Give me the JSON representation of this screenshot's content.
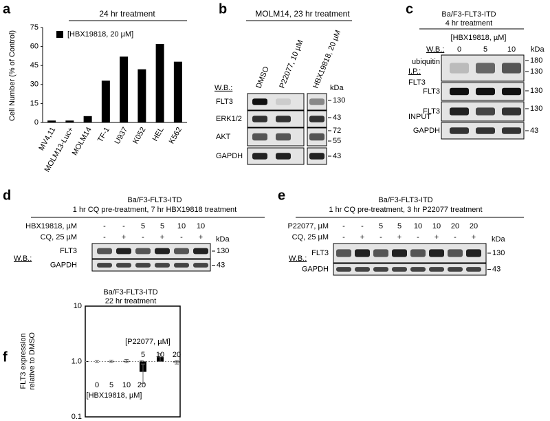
{
  "chart_data": [
    {
      "type": "bar",
      "panel": "a",
      "title": "24 hr treatment",
      "legend": "[HBX19818, 20 µM]",
      "ylabel": "Cell Number (% of Control)",
      "categories": [
        "MV4,11",
        "MOLM13-Luc+",
        "MOLM14",
        "TF-1",
        "U937",
        "K052",
        "HEL",
        "K562"
      ],
      "values": [
        1.5,
        1.5,
        5,
        33,
        52,
        42,
        62,
        48
      ],
      "color": "#000000",
      "ylim": [
        0,
        75
      ],
      "yticks": [
        0,
        15,
        30,
        45,
        60,
        75
      ]
    },
    {
      "type": "bar",
      "panel": "f",
      "title": "Ba/F3-FLT3-ITD",
      "subtitle": "22 hr treatment",
      "ylabel": [
        "FLT3 expression",
        "relative to DMSO"
      ],
      "log_scale": true,
      "reference_line": 1,
      "ylim": [
        0.1,
        10
      ],
      "yticks": [
        0.1,
        {
          "value": 1,
          "label": "1.0"
        },
        10
      ],
      "color": "#000000",
      "series": [
        {
          "name": "[HBX19818, µM]",
          "categories": [
            "0",
            "5",
            "10",
            "20"
          ],
          "values": [
            1.0,
            1.01,
            1.02,
            1.0
          ],
          "errors": [
            0.04,
            0.05,
            0.07,
            0.04
          ]
        },
        {
          "name": "[P22077, µM]",
          "categories": [
            "5",
            "10",
            "20"
          ],
          "values": [
            0.65,
            1.2,
            0.97
          ],
          "errors": [
            0.25,
            0.2,
            0.07
          ]
        }
      ]
    }
  ],
  "blots": [
    {
      "panel": "b",
      "title": "MOLM14, 23 hr treatment",
      "lanes": [
        "DMSO",
        "P22077, 10 µM",
        "HBX19818, 20 µM"
      ],
      "wb": "W.B.:",
      "kda": "kDa",
      "rows": [
        "FLT3",
        "ERK1/2",
        "AKT",
        "GAPDH"
      ],
      "markers": [
        "130",
        "43",
        "72",
        "55",
        "43"
      ]
    },
    {
      "panel": "c",
      "title": [
        "Ba/F3-FLT3-ITD",
        "4 hr treatment"
      ],
      "header": "[HBX19818, µM]",
      "doses": [
        "0",
        "5",
        "10"
      ],
      "wb": "W.B.:",
      "kda": "kDa",
      "ip": [
        "I.P.:",
        "FLT3"
      ],
      "input": "INPUT",
      "rows": [
        "ubiquitin",
        "FLT3",
        "FLT3",
        "GAPDH"
      ],
      "markers": [
        "180",
        "130",
        "130",
        "130",
        "43"
      ]
    },
    {
      "panel": "d",
      "title": "Ba/F3-FLT3-ITD",
      "subtitle": "1 hr CQ pre-treatment, 7 hr HBX19818 treatment",
      "treatments": [
        {
          "name": "HBX19818, µM",
          "values": [
            "-",
            "-",
            "5",
            "5",
            "10",
            "10"
          ]
        },
        {
          "name": "CQ, 25 µM",
          "values": [
            "-",
            "+",
            "-",
            "+",
            "-",
            "+"
          ]
        }
      ],
      "wb": "W.B.:",
      "kda": "kDa",
      "rows": [
        "FLT3",
        "GAPDH"
      ],
      "markers": [
        "130",
        "43"
      ]
    },
    {
      "panel": "e",
      "title": "Ba/F3-FLT3-ITD",
      "subtitle": "1 hr CQ pre-treatment, 3 hr P22077 treatment",
      "treatments": [
        {
          "name": "P22077, µM",
          "values": [
            "-",
            "-",
            "5",
            "5",
            "10",
            "10",
            "20",
            "20"
          ]
        },
        {
          "name": "CQ, 25 µM",
          "values": [
            "-",
            "+",
            "-",
            "+",
            "-",
            "+",
            "-",
            "+"
          ]
        }
      ],
      "wb": "W.B.:",
      "kda": "kDa",
      "rows": [
        "FLT3",
        "GAPDH"
      ],
      "markers": [
        "130",
        "43"
      ]
    }
  ]
}
